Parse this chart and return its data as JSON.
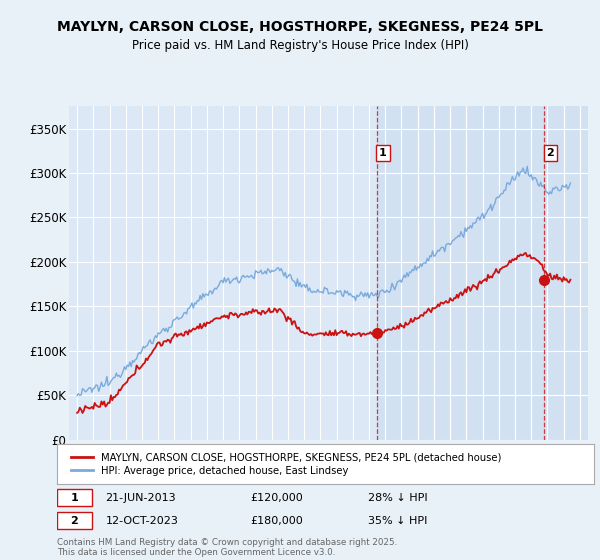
{
  "title": "MAYLYN, CARSON CLOSE, HOGSTHORPE, SKEGNESS, PE24 5PL",
  "subtitle": "Price paid vs. HM Land Registry's House Price Index (HPI)",
  "background_color": "#e8f0f8",
  "plot_bg_color": "#dce8f5",
  "shade_color": "#ccddf0",
  "grid_color": "#ffffff",
  "sale1": {
    "date_num": 2013.47,
    "price": 120000,
    "label": "1",
    "date_str": "21-JUN-2013",
    "pct": "28% ↓ HPI"
  },
  "sale2": {
    "date_num": 2023.78,
    "price": 180000,
    "label": "2",
    "date_str": "12-OCT-2023",
    "pct": "35% ↓ HPI"
  },
  "hpi_color": "#7aaadd",
  "sold_color": "#cc1111",
  "legend_label_sold": "MAYLYN, CARSON CLOSE, HOGSTHORPE, SKEGNESS, PE24 5PL (detached house)",
  "legend_label_hpi": "HPI: Average price, detached house, East Lindsey",
  "footer": "Contains HM Land Registry data © Crown copyright and database right 2025.\nThis data is licensed under the Open Government Licence v3.0.",
  "ylim": [
    0,
    375000
  ],
  "yticks": [
    0,
    50000,
    100000,
    150000,
    200000,
    250000,
    300000,
    350000
  ],
  "ytick_labels": [
    "£0",
    "£50K",
    "£100K",
    "£150K",
    "£200K",
    "£250K",
    "£300K",
    "£350K"
  ],
  "xlim_start": 1994.5,
  "xlim_end": 2026.5
}
